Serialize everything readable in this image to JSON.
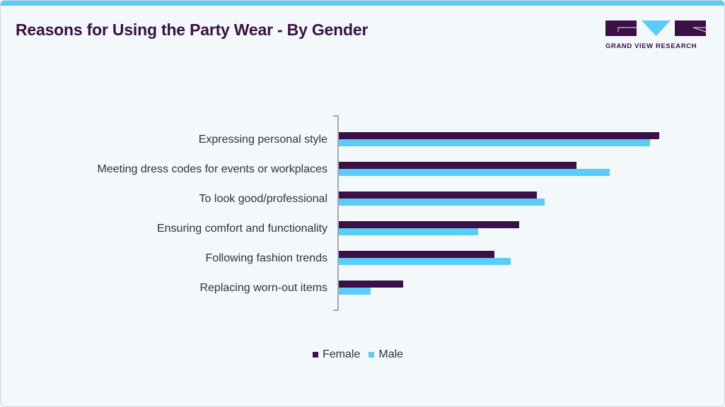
{
  "header": {
    "title": "Reasons for Using the Party Wear - By Gender"
  },
  "logo": {
    "text": "GRAND VIEW RESEARCH"
  },
  "chart_data": {
    "type": "bar",
    "orientation": "horizontal",
    "title": "Reasons for Using the Party Wear - By Gender",
    "categories": [
      "Expressing personal style",
      "Meeting dress codes for events or workplaces",
      "To look good/professional",
      "Ensuring comfort and functionality",
      "Following fashion trends",
      "Replacing worn-out items"
    ],
    "series": [
      {
        "name": "Female",
        "color": "#3a1047",
        "values": [
          90.6,
          67.2,
          56.0,
          51.0,
          44.0,
          18.2
        ]
      },
      {
        "name": "Male",
        "color": "#5ccbf5",
        "values": [
          88.0,
          76.6,
          58.2,
          39.4,
          48.6,
          9.0
        ]
      }
    ],
    "xlim": [
      0,
      100
    ],
    "grid": false,
    "legend": "bottom"
  }
}
